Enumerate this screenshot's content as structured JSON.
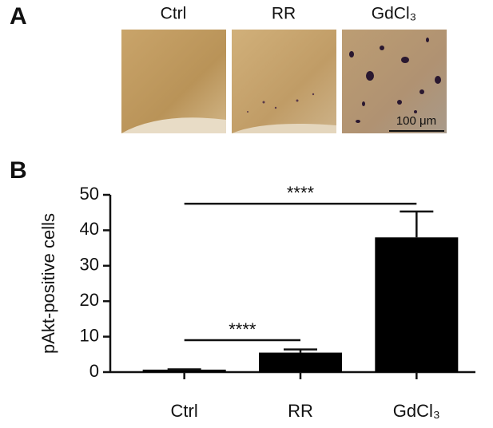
{
  "panel_a": {
    "label": "A",
    "images": [
      "Ctrl",
      "RR",
      "GdCl₃"
    ],
    "scale_bar": "100 μm"
  },
  "chart_data": {
    "type": "bar",
    "panel_label": "B",
    "y_label": "pAkt-positive cells",
    "categories": [
      "Ctrl",
      "RR",
      "GdCl₃"
    ],
    "values": [
      0.7,
      5.5,
      38
    ],
    "errors": [
      0.1,
      0.9,
      7.3
    ],
    "color": "#000000",
    "ylim": [
      0,
      50
    ],
    "yticks": [
      0,
      10,
      20,
      30,
      40,
      50
    ],
    "annotations": [
      {
        "text": "****",
        "categories": [
          "Ctrl",
          "RR"
        ],
        "y": 9
      },
      {
        "text": "****",
        "categories": [
          "Ctrl",
          "GdCl₃"
        ],
        "y": 47.5
      }
    ]
  }
}
